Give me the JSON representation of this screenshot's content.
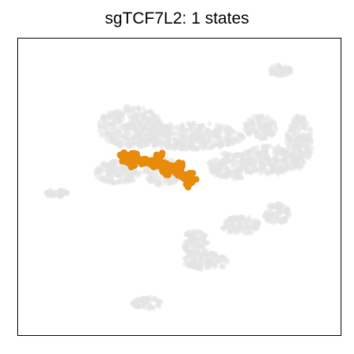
{
  "chart_data": {
    "type": "scatter",
    "title": "sgTCF7L2: 1 states",
    "xlabel": "",
    "ylabel": "",
    "xticks": [],
    "yticks": [],
    "grid": false,
    "legend": "none",
    "colors": {
      "background_cells": "#e3e3e3",
      "highlighted_state": "#e88a0a",
      "frame": "#000000"
    },
    "series": [
      {
        "role": "background",
        "clusters": [
          {
            "cx": 0.53,
            "cy": 0.67,
            "rx": 0.17,
            "ry": 0.045
          },
          {
            "cx": 0.35,
            "cy": 0.7,
            "rx": 0.1,
            "ry": 0.07
          },
          {
            "cx": 0.45,
            "cy": 0.55,
            "rx": 0.06,
            "ry": 0.045
          },
          {
            "cx": 0.31,
            "cy": 0.55,
            "rx": 0.07,
            "ry": 0.04
          },
          {
            "cx": 0.66,
            "cy": 0.57,
            "rx": 0.07,
            "ry": 0.045
          },
          {
            "cx": 0.78,
            "cy": 0.59,
            "rx": 0.09,
            "ry": 0.05
          },
          {
            "cx": 0.87,
            "cy": 0.65,
            "rx": 0.04,
            "ry": 0.09
          },
          {
            "cx": 0.75,
            "cy": 0.7,
            "rx": 0.05,
            "ry": 0.04
          },
          {
            "cx": 0.55,
            "cy": 0.31,
            "rx": 0.04,
            "ry": 0.045
          },
          {
            "cx": 0.58,
            "cy": 0.25,
            "rx": 0.07,
            "ry": 0.03
          },
          {
            "cx": 0.69,
            "cy": 0.37,
            "rx": 0.06,
            "ry": 0.03
          },
          {
            "cx": 0.8,
            "cy": 0.41,
            "rx": 0.04,
            "ry": 0.035
          },
          {
            "cx": 0.12,
            "cy": 0.48,
            "rx": 0.035,
            "ry": 0.015
          },
          {
            "cx": 0.4,
            "cy": 0.11,
            "rx": 0.045,
            "ry": 0.02
          },
          {
            "cx": 0.81,
            "cy": 0.89,
            "rx": 0.035,
            "ry": 0.02
          }
        ]
      },
      {
        "role": "highlighted",
        "states": 1,
        "points": [
          [
            0.33,
            0.6
          ],
          [
            0.36,
            0.6
          ],
          [
            0.39,
            0.59
          ],
          [
            0.42,
            0.58
          ],
          [
            0.45,
            0.57
          ],
          [
            0.48,
            0.56
          ],
          [
            0.5,
            0.55
          ],
          [
            0.52,
            0.54
          ],
          [
            0.54,
            0.53
          ],
          [
            0.5,
            0.57
          ],
          [
            0.46,
            0.55
          ],
          [
            0.44,
            0.6
          ],
          [
            0.35,
            0.58
          ],
          [
            0.53,
            0.51
          ]
        ]
      }
    ]
  }
}
